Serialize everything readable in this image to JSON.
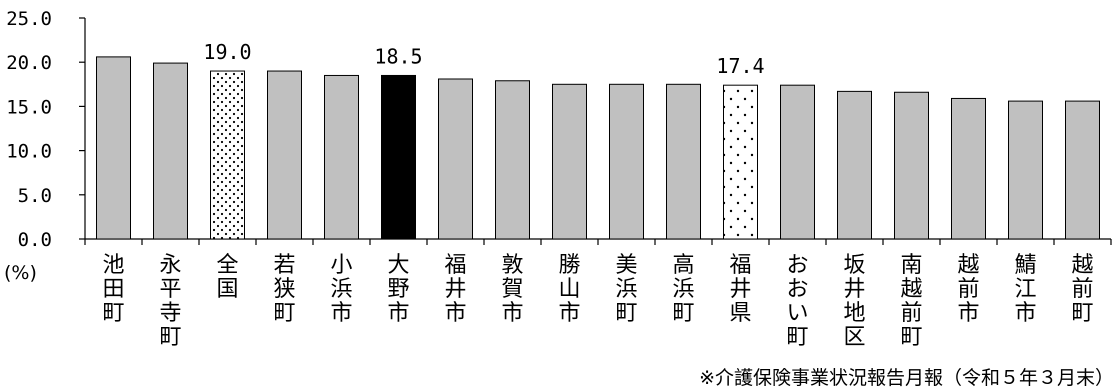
{
  "chart_data": {
    "type": "bar",
    "categories": [
      "池田町",
      "永平寺町",
      "全国",
      "若狭町",
      "小浜市",
      "大野市",
      "福井市",
      "敦賀市",
      "勝山市",
      "美浜町",
      "高浜町",
      "福井県",
      "おおい町",
      "坂井地区",
      "南越前町",
      "越前市",
      "鯖江市",
      "越前町"
    ],
    "values": [
      20.6,
      19.9,
      19.0,
      19.0,
      18.5,
      18.5,
      18.1,
      17.9,
      17.5,
      17.5,
      17.5,
      17.4,
      17.4,
      16.7,
      16.6,
      15.9,
      15.6,
      15.6
    ],
    "data_labels": [
      {
        "category": "全国",
        "text": "19.0"
      },
      {
        "category": "大野市",
        "text": "18.5"
      },
      {
        "category": "福井県",
        "text": "17.4"
      }
    ],
    "bar_styles": [
      "gray",
      "gray",
      "dense-dots",
      "gray",
      "gray",
      "black",
      "gray",
      "gray",
      "gray",
      "gray",
      "gray",
      "sparse-dots",
      "gray",
      "gray",
      "gray",
      "gray",
      "gray",
      "gray"
    ],
    "colors": {
      "gray": "#c0c0c0",
      "black": "#000000",
      "outline": "#000000"
    },
    "y_ticks": [
      "0.0",
      "5.0",
      "10.0",
      "15.0",
      "20.0",
      "25.0"
    ],
    "ylim": [
      0,
      25
    ],
    "ylabel": "(%)",
    "title": "",
    "grid": false,
    "source": "※介護保険事業状況報告月報（令和５年３月末）"
  }
}
